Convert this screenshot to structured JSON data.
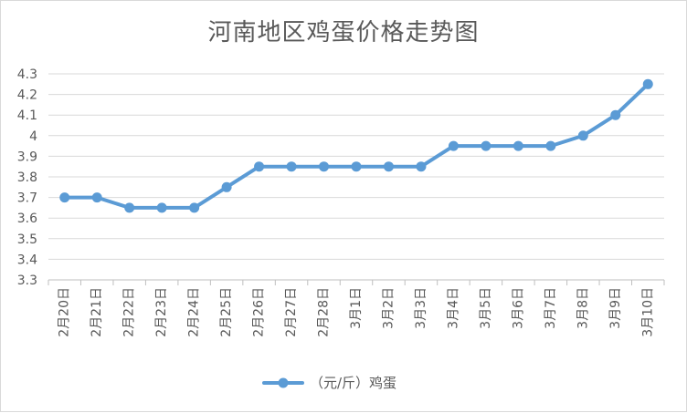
{
  "chart_data": {
    "type": "line",
    "title": "河南地区鸡蛋价格走势图",
    "categories": [
      "2月20日",
      "2月21日",
      "2月22日",
      "2月23日",
      "2月24日",
      "2月25日",
      "2月26日",
      "2月27日",
      "2月28日",
      "3月1日",
      "3月2日",
      "3月3日",
      "3月4日",
      "3月5日",
      "3月6日",
      "3月7日",
      "3月8日",
      "3月9日",
      "3月10日"
    ],
    "series": [
      {
        "name": "（元/斤）鸡蛋",
        "values": [
          3.7,
          3.7,
          3.65,
          3.65,
          3.65,
          3.75,
          3.85,
          3.85,
          3.85,
          3.85,
          3.85,
          3.85,
          3.95,
          3.95,
          3.95,
          3.95,
          4.0,
          4.1,
          4.25
        ]
      }
    ],
    "ylim": [
      3.3,
      4.3
    ],
    "yticks": [
      "3.3",
      "3.4",
      "3.5",
      "3.6",
      "3.7",
      "3.8",
      "3.9",
      "4",
      "4.1",
      "4.2",
      "4.3"
    ],
    "grid": true,
    "legend_position": "bottom",
    "colors": {
      "line": "#5b9bd5",
      "grid": "#d9d9d9",
      "axis": "#bfbfbf",
      "text": "#595959"
    }
  }
}
